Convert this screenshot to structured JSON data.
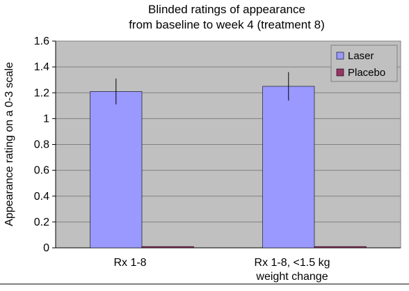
{
  "chart_data": {
    "type": "bar",
    "title_lines": [
      "Blinded ratings of appearance",
      "from baseline to week 4 (treatment 8)"
    ],
    "xlabel": "",
    "ylabel": "Appearance rating on a 0-3 scale",
    "categories": [
      [
        "Rx 1-8"
      ],
      [
        "Rx 1-8, <1.5 kg",
        "weight   change"
      ]
    ],
    "series": [
      {
        "name": "Laser",
        "color": "#9999ff",
        "values": [
          1.21,
          1.25
        ],
        "error_low": [
          1.11,
          1.14
        ],
        "error_high": [
          1.31,
          1.36
        ]
      },
      {
        "name": "Placebo",
        "color": "#993366",
        "values": [
          0.01,
          0.01
        ]
      }
    ],
    "ylim": [
      0,
      1.6
    ],
    "yticks": [
      0,
      0.2,
      0.4,
      0.6,
      0.8,
      1,
      1.2,
      1.4,
      1.6
    ],
    "ytick_labels": [
      "0",
      "0.2",
      "0.4",
      "0.6",
      "0.8",
      "1",
      "1.2",
      "1.4",
      "1.6"
    ],
    "grid": true,
    "legend_position": "top-right",
    "plot_background": "#c0c0c0"
  }
}
